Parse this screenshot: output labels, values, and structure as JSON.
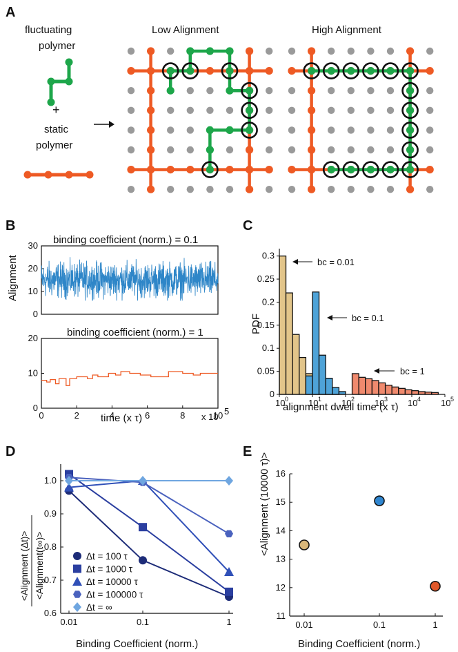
{
  "colors": {
    "orange": "#EE5A24",
    "green": "#1DA64A",
    "grid": "#9A9A9A",
    "blue": "#2E86C8",
    "tan": "#E2C58A",
    "salmon": "#F08A6E",
    "d_series": [
      "#1D2C78",
      "#2B3FA0",
      "#3050B8",
      "#4A62BE",
      "#6FA6E0"
    ],
    "e_points": [
      "#D9B77A",
      "#2F86D0",
      "#E0582A"
    ]
  },
  "panelA": {
    "label": "A",
    "fluct_label_1": "fluctuating",
    "fluct_label_2": "polymer",
    "plus": "+",
    "static_label_1": "static",
    "static_label_2": "polymer",
    "low_title": "Low Alignment",
    "high_title": "High Alignment"
  },
  "panelB": {
    "label": "B",
    "ylabel": "Alignment",
    "chart_data": [
      {
        "type": "line",
        "title": "binding coefficient (norm.) = 0.1",
        "xlabel": "",
        "ylabel": "Alignment",
        "xlim": [
          0,
          10
        ],
        "ylim": [
          0,
          30
        ],
        "yticks": [
          0,
          10,
          20,
          30
        ],
        "mean": 15,
        "range": [
          6,
          29
        ],
        "color": "#2E86C8"
      },
      {
        "type": "line",
        "title": "binding coefficient (norm.) = 1",
        "xlabel": "time (x τ)",
        "x_multiplier": "x 10",
        "x_multiplier_exp": "5",
        "xlim": [
          0,
          10
        ],
        "ylim": [
          0,
          20
        ],
        "yticks": [
          0,
          10,
          20
        ],
        "xticks": [
          0,
          2,
          4,
          6,
          8,
          10
        ],
        "steps": [
          [
            0,
            8
          ],
          [
            0.3,
            7.5
          ],
          [
            0.5,
            8.2
          ],
          [
            0.8,
            7
          ],
          [
            1.0,
            8.5
          ],
          [
            1.4,
            6.5
          ],
          [
            1.6,
            8.5
          ],
          [
            2.0,
            9
          ],
          [
            2.6,
            8.5
          ],
          [
            2.9,
            9.5
          ],
          [
            3.2,
            9
          ],
          [
            3.8,
            10
          ],
          [
            4.2,
            9.5
          ],
          [
            4.5,
            10.5
          ],
          [
            5.0,
            10
          ],
          [
            5.6,
            9.5
          ],
          [
            6.2,
            9
          ],
          [
            7.0,
            9
          ],
          [
            7.2,
            10.5
          ],
          [
            8.0,
            10
          ],
          [
            8.6,
            9.5
          ],
          [
            9.0,
            10
          ],
          [
            10,
            10
          ]
        ],
        "color": "#EE5A24"
      }
    ]
  },
  "panelC": {
    "label": "C",
    "chart_data": {
      "type": "bar",
      "xlabel": "alignment dwell time (x τ)",
      "ylabel": "PDF",
      "xscale": "log",
      "xlim": [
        1,
        100000
      ],
      "ylim": [
        0,
        0.31
      ],
      "yticks": [
        "0",
        "0.05",
        "0.1",
        "0.15",
        "0.2",
        "0.25",
        "0.3"
      ],
      "xtick_exponents": [
        "0",
        "1",
        "2",
        "3",
        "4",
        "5"
      ],
      "xtick_base": "10",
      "series": [
        {
          "name": "bc = 0.01",
          "color": "#E2C58A",
          "bins": [
            [
              1,
              1.58,
              0.3
            ],
            [
              1.58,
              2.51,
              0.22
            ],
            [
              2.51,
              3.98,
              0.13
            ],
            [
              3.98,
              6.31,
              0.08
            ],
            [
              6.31,
              10,
              0.045
            ],
            [
              10,
              15.8,
              0.025
            ],
            [
              15.8,
              25.1,
              0.012
            ],
            [
              25.1,
              39.8,
              0.006
            ],
            [
              39.8,
              63.1,
              0.003
            ]
          ]
        },
        {
          "name": "bc = 0.1",
          "color": "#4EA3D8",
          "bins": [
            [
              6.31,
              10,
              0.04
            ],
            [
              10,
              15.8,
              0.222
            ],
            [
              15.8,
              25.1,
              0.085
            ],
            [
              25.1,
              39.8,
              0.035
            ],
            [
              39.8,
              63.1,
              0.015
            ],
            [
              63.1,
              100,
              0.006
            ]
          ]
        },
        {
          "name": "bc = 1",
          "color": "#F08A6E",
          "bins": [
            [
              158,
              251,
              0.045
            ],
            [
              251,
              398,
              0.037
            ],
            [
              398,
              631,
              0.034
            ],
            [
              631,
              1000,
              0.03
            ],
            [
              1000,
              1585,
              0.025
            ],
            [
              1585,
              2512,
              0.02
            ],
            [
              2512,
              3981,
              0.016
            ],
            [
              3981,
              6310,
              0.013
            ],
            [
              6310,
              10000,
              0.01
            ],
            [
              10000,
              15850,
              0.008
            ],
            [
              15850,
              25120,
              0.006
            ],
            [
              25120,
              39810,
              0.005
            ],
            [
              39810,
              63100,
              0.004
            ]
          ]
        }
      ]
    }
  },
  "panelD": {
    "label": "D",
    "ylabel_top": "<Alignment (Δt)>",
    "ylabel_bot": "<Alignment(t∞)>",
    "chart_data": {
      "type": "line",
      "xlabel": "Binding Coefficient (norm.)",
      "xscale": "log",
      "categories": [
        "0.01",
        "0.1",
        "1"
      ],
      "x": [
        0.01,
        0.1,
        1
      ],
      "ylim": [
        0.6,
        1.05
      ],
      "yticks": [
        "0.6",
        "0.7",
        "0.8",
        "0.9",
        "1.0"
      ],
      "series": [
        {
          "name": "Δt = 100 τ",
          "values": [
            0.97,
            0.76,
            0.65
          ],
          "marker": "circle"
        },
        {
          "name": "Δt = 1000 τ",
          "values": [
            1.02,
            0.86,
            0.665
          ],
          "marker": "square"
        },
        {
          "name": "Δt = 10000 τ",
          "values": [
            0.98,
            1.0,
            0.725
          ],
          "marker": "triangle"
        },
        {
          "name": "Δt = 100000 τ",
          "values": [
            1.01,
            0.995,
            0.84
          ],
          "marker": "hexagon"
        },
        {
          "name": "Δt = ∞",
          "values": [
            1.0,
            1.0,
            1.0
          ],
          "marker": "diamond"
        }
      ]
    }
  },
  "panelE": {
    "label": "E",
    "chart_data": {
      "type": "scatter",
      "xlabel": "Binding Coefficient (norm.)",
      "ylabel": "<Alignment (10000 τ)>",
      "xscale": "log",
      "categories": [
        "0.01",
        "0.1",
        "1"
      ],
      "x": [
        0.01,
        0.1,
        1
      ],
      "values": [
        13.5,
        15.05,
        12.05
      ],
      "ylim": [
        11,
        16
      ],
      "yticks": [
        "11",
        "12",
        "13",
        "14",
        "15",
        "16"
      ]
    }
  }
}
